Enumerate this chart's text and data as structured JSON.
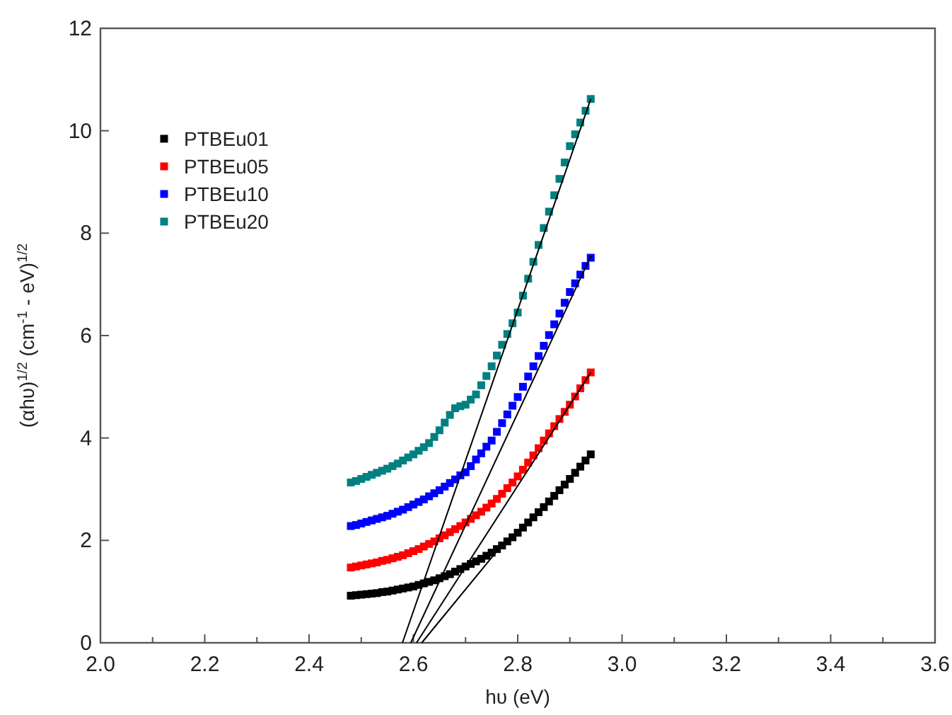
{
  "chart_data": {
    "type": "scatter",
    "xlabel": "hυ (eV)",
    "ylabel": "(αhυ)$^{1/2}$ (cm$^{-1}$ - eV)$^{1/2}$",
    "x": [
      2.48,
      2.49,
      2.5,
      2.51,
      2.52,
      2.53,
      2.54,
      2.55,
      2.56,
      2.57,
      2.58,
      2.59,
      2.6,
      2.61,
      2.62,
      2.63,
      2.64,
      2.65,
      2.66,
      2.67,
      2.68,
      2.69,
      2.7,
      2.71,
      2.72,
      2.73,
      2.74,
      2.75,
      2.76,
      2.77,
      2.78,
      2.79,
      2.8,
      2.81,
      2.82,
      2.83,
      2.84,
      2.85,
      2.86,
      2.87,
      2.88,
      2.89,
      2.9,
      2.91,
      2.92,
      2.93,
      2.94
    ],
    "xlim": [
      2.0,
      3.6
    ],
    "xticks": [
      {
        "value": 2.0,
        "label": "2.0"
      },
      {
        "value": 2.1,
        "label": null
      },
      {
        "value": 2.2,
        "label": "2.2"
      },
      {
        "value": 2.3,
        "label": null
      },
      {
        "value": 2.4,
        "label": "2.4"
      },
      {
        "value": 2.5,
        "label": null
      },
      {
        "value": 2.6,
        "label": "2.6"
      },
      {
        "value": 2.7,
        "label": null
      },
      {
        "value": 2.8,
        "label": "2.8"
      },
      {
        "value": 2.9,
        "label": null
      },
      {
        "value": 3.0,
        "label": "3.0"
      },
      {
        "value": 3.1,
        "label": null
      },
      {
        "value": 3.2,
        "label": "3.2"
      },
      {
        "value": 3.3,
        "label": null
      },
      {
        "value": 3.4,
        "label": "3.4"
      },
      {
        "value": 3.5,
        "label": null
      },
      {
        "value": 3.6,
        "label": "3.6"
      }
    ],
    "ylim": [
      0,
      12
    ],
    "yticks": [
      0,
      2,
      4,
      6,
      8,
      10,
      12
    ],
    "marker": "square",
    "legend": "top left",
    "series": [
      {
        "name": "PTBEu01",
        "color": "#000000",
        "values": [
          0.92,
          0.93,
          0.94,
          0.95,
          0.96,
          0.97,
          0.99,
          1.0,
          1.02,
          1.04,
          1.06,
          1.08,
          1.1,
          1.13,
          1.16,
          1.19,
          1.22,
          1.26,
          1.3,
          1.34,
          1.39,
          1.44,
          1.49,
          1.54,
          1.59,
          1.64,
          1.7,
          1.76,
          1.83,
          1.9,
          1.98,
          2.06,
          2.15,
          2.25,
          2.35,
          2.45,
          2.55,
          2.65,
          2.76,
          2.87,
          2.98,
          3.09,
          3.2,
          3.32,
          3.44,
          3.56,
          3.68
        ]
      },
      {
        "name": "PTBEu05",
        "color": "#ff0000",
        "values": [
          1.47,
          1.49,
          1.51,
          1.53,
          1.55,
          1.57,
          1.6,
          1.62,
          1.65,
          1.68,
          1.71,
          1.75,
          1.79,
          1.83,
          1.88,
          1.93,
          1.98,
          2.04,
          2.1,
          2.16,
          2.22,
          2.28,
          2.35,
          2.42,
          2.49,
          2.56,
          2.64,
          2.72,
          2.81,
          2.91,
          3.02,
          3.13,
          3.25,
          3.38,
          3.52,
          3.66,
          3.8,
          3.95,
          4.09,
          4.23,
          4.37,
          4.51,
          4.65,
          4.81,
          4.97,
          5.13,
          5.28
        ]
      },
      {
        "name": "PTBEu10",
        "color": "#0000ff",
        "values": [
          2.28,
          2.3,
          2.33,
          2.36,
          2.39,
          2.42,
          2.45,
          2.48,
          2.52,
          2.56,
          2.6,
          2.65,
          2.7,
          2.75,
          2.8,
          2.86,
          2.92,
          2.98,
          3.05,
          3.12,
          3.19,
          3.27,
          3.33,
          3.45,
          3.58,
          3.7,
          3.83,
          3.95,
          4.12,
          4.29,
          4.46,
          4.63,
          4.8,
          5.0,
          5.2,
          5.4,
          5.6,
          5.8,
          6.01,
          6.22,
          6.43,
          6.64,
          6.85,
          7.02,
          7.19,
          7.36,
          7.52
        ]
      },
      {
        "name": "PTBEu20",
        "color": "#008080",
        "values": [
          3.13,
          3.16,
          3.2,
          3.24,
          3.28,
          3.32,
          3.36,
          3.4,
          3.45,
          3.5,
          3.56,
          3.62,
          3.68,
          3.75,
          3.82,
          3.9,
          4.02,
          4.15,
          4.3,
          4.45,
          4.58,
          4.62,
          4.65,
          4.75,
          4.85,
          5.03,
          5.21,
          5.4,
          5.61,
          5.82,
          6.03,
          6.24,
          6.45,
          6.78,
          7.11,
          7.44,
          7.77,
          8.1,
          8.42,
          8.74,
          9.06,
          9.38,
          9.7,
          9.93,
          10.16,
          10.39,
          10.62
        ]
      },
      {
        "type": "line",
        "color": "#000000",
        "marker": "none",
        "line_style": "solid",
        "x": [
          2.616,
          2.765
        ],
        "values": [
          0,
          1.85
        ]
      },
      {
        "type": "line",
        "color": "#000000",
        "marker": "none",
        "line_style": "solid",
        "x": [
          2.606,
          2.94
        ],
        "values": [
          0,
          5.28
        ]
      },
      {
        "type": "line",
        "color": "#000000",
        "marker": "none",
        "line_style": "solid",
        "x": [
          2.595,
          2.94
        ],
        "values": [
          0,
          7.55
        ]
      },
      {
        "type": "line",
        "color": "#000000",
        "marker": "none",
        "line_style": "solid",
        "x": [
          2.579,
          2.94
        ],
        "values": [
          0,
          10.62
        ]
      }
    ]
  }
}
